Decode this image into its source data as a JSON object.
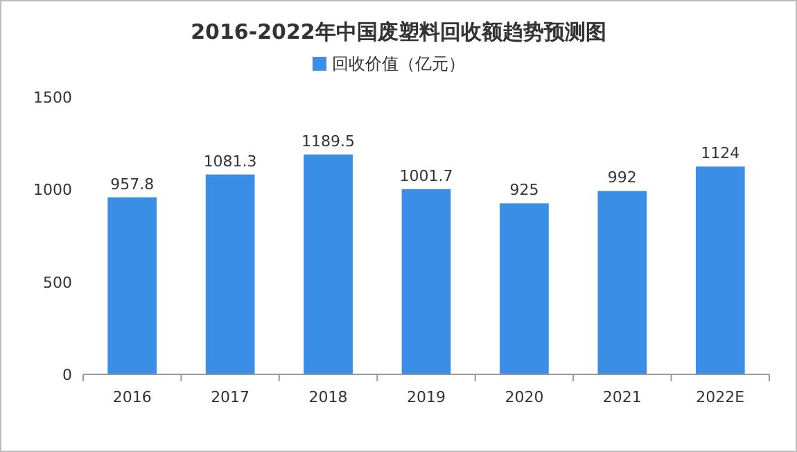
{
  "chart_data": {
    "type": "bar",
    "title": "2016-2022年中国废塑料回收额趋势预测图",
    "categories": [
      "2016",
      "2017",
      "2018",
      "2019",
      "2020",
      "2021",
      "2022E"
    ],
    "series": [
      {
        "name": "回收价值（亿元）",
        "color": "#3a8ee6",
        "values": [
          957.8,
          1081.3,
          1189.5,
          1001.7,
          925,
          992,
          1124
        ]
      }
    ],
    "ylim": [
      0,
      1500
    ],
    "yticks": [
      0,
      500,
      1000,
      1500
    ],
    "grid": false,
    "legend": "top",
    "data_labels": true
  }
}
